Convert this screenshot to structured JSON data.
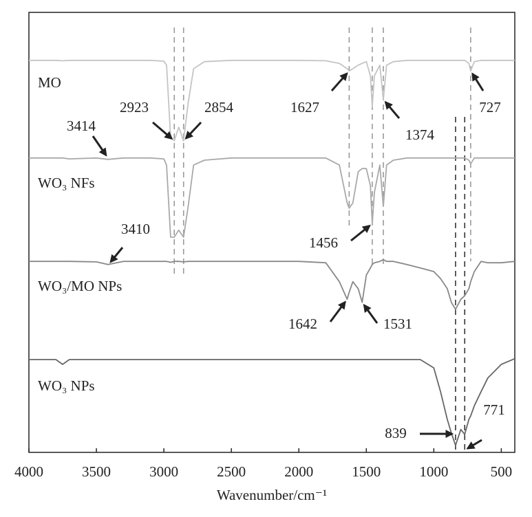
{
  "chart_data": {
    "type": "line",
    "x_label": "Wavenumber/cm⁻¹",
    "xlim": [
      4000,
      400
    ],
    "ylim": [
      0,
      100
    ],
    "xticks": [
      4000,
      3500,
      3000,
      2500,
      2000,
      1500,
      1000,
      500
    ],
    "x": [
      4000,
      3800,
      3750,
      3700,
      3500,
      3414,
      3300,
      3100,
      3000,
      2980,
      2950,
      2923,
      2890,
      2854,
      2820,
      2780,
      2700,
      2500,
      2200,
      2000,
      1800,
      1700,
      1642,
      1627,
      1600,
      1560,
      1531,
      1500,
      1470,
      1456,
      1440,
      1400,
      1374,
      1350,
      1300,
      1200,
      1100,
      1000,
      950,
      900,
      870,
      839,
      800,
      771,
      740,
      727,
      700,
      650,
      600,
      500,
      400
    ],
    "series": [
      {
        "name": "MO",
        "color": "#c4c4c4",
        "values": [
          89.1,
          89.1,
          89.0,
          89.1,
          89.1,
          89.1,
          89.1,
          89.1,
          88.9,
          88.0,
          71.7,
          70.8,
          73.9,
          70.8,
          79.4,
          87.2,
          88.8,
          89.1,
          89.1,
          89.1,
          89.0,
          88.4,
          87.2,
          86.7,
          87.2,
          88.0,
          88.4,
          88.8,
          85.6,
          78.6,
          85.6,
          88.0,
          80.2,
          88.0,
          88.8,
          89.1,
          89.1,
          89.1,
          89.1,
          89.1,
          89.1,
          89.1,
          89.1,
          89.1,
          88.4,
          86.7,
          88.8,
          89.1,
          89.1,
          89.1,
          89.1
        ]
      },
      {
        "name": "WO₃ NFs",
        "color": "#a9a9a9",
        "values": [
          66.9,
          66.9,
          66.9,
          66.7,
          66.9,
          66.6,
          66.9,
          66.9,
          66.7,
          65.3,
          48.9,
          48.9,
          50.5,
          48.9,
          55.9,
          65.3,
          66.4,
          66.9,
          66.9,
          66.9,
          66.9,
          65.3,
          56.7,
          55.5,
          56.7,
          63.8,
          64.5,
          64.5,
          60.6,
          52.0,
          59.1,
          65.3,
          55.9,
          65.3,
          66.4,
          66.9,
          66.9,
          66.9,
          66.9,
          66.9,
          66.9,
          66.9,
          66.9,
          66.9,
          66.4,
          65.6,
          66.9,
          66.9,
          66.9,
          66.9,
          66.9
        ]
      },
      {
        "name": "WO₃/MO NPs",
        "color": "#888888",
        "values": [
          43.4,
          43.4,
          43.4,
          43.4,
          43.3,
          42.7,
          43.4,
          43.4,
          43.4,
          43.4,
          43.2,
          43.4,
          43.4,
          43.3,
          43.4,
          43.4,
          43.4,
          43.4,
          43.4,
          43.4,
          43.1,
          38.8,
          34.8,
          36.4,
          38.8,
          37.2,
          34.1,
          40.3,
          41.9,
          42.7,
          43.1,
          43.4,
          43.8,
          43.4,
          43.4,
          42.7,
          41.9,
          41.1,
          39.5,
          37.2,
          34.1,
          32.5,
          34.8,
          35.6,
          37.2,
          38.8,
          41.1,
          43.4,
          43.1,
          43.1,
          43.4
        ]
      },
      {
        "name": "WO₃ NPs",
        "color": "#666666",
        "values": [
          21.1,
          21.1,
          20.0,
          21.1,
          21.1,
          21.1,
          21.1,
          21.1,
          21.1,
          21.1,
          21.1,
          21.1,
          21.1,
          21.1,
          21.1,
          21.1,
          21.1,
          21.1,
          21.1,
          21.1,
          21.1,
          21.1,
          21.1,
          21.1,
          21.1,
          21.1,
          21.1,
          21.1,
          21.1,
          21.1,
          21.1,
          21.1,
          21.1,
          21.1,
          21.1,
          21.1,
          21.1,
          19.2,
          13.8,
          7.5,
          4.4,
          1.6,
          5.2,
          4.1,
          7.5,
          8.3,
          10.6,
          13.8,
          16.9,
          20.0,
          21.3
        ]
      }
    ],
    "annotations": [
      {
        "x": 3414,
        "y": 66.9
      },
      {
        "x": 2923,
        "y": 70.8
      },
      {
        "x": 2854,
        "y": 70.8
      },
      {
        "x": 1627,
        "y": 86.7
      },
      {
        "x": 1374,
        "y": 80.2
      },
      {
        "x": 727,
        "y": 86.7
      },
      {
        "x": 3410,
        "y": 42.7
      },
      {
        "x": 1456,
        "y": 52.0
      },
      {
        "x": 1642,
        "y": 34.8
      },
      {
        "x": 1531,
        "y": 34.1
      },
      {
        "x": 839,
        "y": 4.2
      },
      {
        "x": 771,
        "y": 0.5
      }
    ]
  }
}
